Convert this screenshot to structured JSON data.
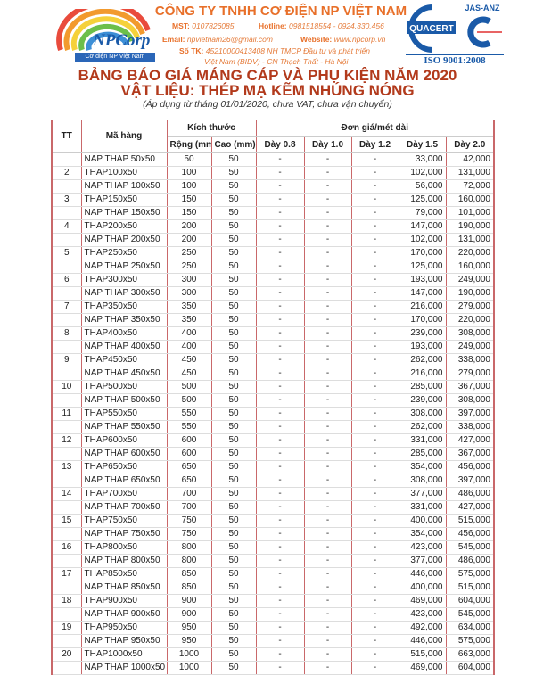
{
  "header": {
    "company": "CÔNG TY TNHH CƠ ĐIỆN NP VIỆT NAM",
    "mst_label": "MST:",
    "mst": "0107826085",
    "hotline_label": "Hotline:",
    "hotline": "0981518554 - 0924.330.456",
    "email_label": "Email:",
    "email": "npvietnam26@gmail.com",
    "website_label": "Website:",
    "website": "www.npcorp.vn",
    "account_label": "Số TK:",
    "account": "45210000413408 NH TMCP Đầu tư và phát triển",
    "account2": "Việt Nam (BIDV) - CN Thạch Thất - Hà Nội",
    "logo_text": "NPCorp",
    "logo_sub": "Cơ điện NP Việt Nam",
    "cert_text": "QUACERT",
    "cert_org": "JAS-ANZ",
    "iso": "ISO 9001:2008",
    "colors": {
      "brand_orange": "#e8702a",
      "title_red": "#b23a1c",
      "quacert_blue": "#1a5aa8"
    }
  },
  "title": {
    "line1": "BẢNG BÁO GIÁ MÁNG CÁP VÀ PHỤ KIỆN NĂM 2020",
    "line2": "VẬT LIỆU: THÉP MẠ KẼM NHÚNG NÓNG",
    "note": "(Áp dụng từ tháng 01/01/2020, chưa VAT, chưa vận chuyển)"
  },
  "table": {
    "headers": {
      "tt": "TT",
      "code": "Mã hàng",
      "size": "Kích thước",
      "price": "Đơn giá/mét dài",
      "width": "Rộng (mm)",
      "height": "Cao (mm)",
      "d08": "Dày 0.8",
      "d10": "Dày 1.0",
      "d12": "Dày 1.2",
      "d15": "Dày 1.5",
      "d20": "Dày 2.0"
    },
    "rows": [
      [
        "",
        "NAP THAP 50x50",
        "50",
        "50",
        "-",
        "-",
        "-",
        "33,000",
        "42,000"
      ],
      [
        "2",
        "THAP100x50",
        "100",
        "50",
        "-",
        "-",
        "-",
        "102,000",
        "131,000"
      ],
      [
        "",
        "NAP THAP 100x50",
        "100",
        "50",
        "-",
        "-",
        "-",
        "56,000",
        "72,000"
      ],
      [
        "3",
        "THAP150x50",
        "150",
        "50",
        "-",
        "-",
        "-",
        "125,000",
        "160,000"
      ],
      [
        "",
        "NAP THAP 150x50",
        "150",
        "50",
        "-",
        "-",
        "-",
        "79,000",
        "101,000"
      ],
      [
        "4",
        "THAP200x50",
        "200",
        "50",
        "-",
        "-",
        "-",
        "147,000",
        "190,000"
      ],
      [
        "",
        "NAP THAP 200x50",
        "200",
        "50",
        "-",
        "-",
        "-",
        "102,000",
        "131,000"
      ],
      [
        "5",
        "THAP250x50",
        "250",
        "50",
        "-",
        "-",
        "-",
        "170,000",
        "220,000"
      ],
      [
        "",
        "NAP THAP 250x50",
        "250",
        "50",
        "-",
        "-",
        "-",
        "125,000",
        "160,000"
      ],
      [
        "6",
        "THAP300x50",
        "300",
        "50",
        "-",
        "-",
        "-",
        "193,000",
        "249,000"
      ],
      [
        "",
        "NAP THAP 300x50",
        "300",
        "50",
        "-",
        "-",
        "-",
        "147,000",
        "190,000"
      ],
      [
        "7",
        "THAP350x50",
        "350",
        "50",
        "-",
        "-",
        "-",
        "216,000",
        "279,000"
      ],
      [
        "",
        "NAP THAP 350x50",
        "350",
        "50",
        "-",
        "-",
        "-",
        "170,000",
        "220,000"
      ],
      [
        "8",
        "THAP400x50",
        "400",
        "50",
        "-",
        "-",
        "-",
        "239,000",
        "308,000"
      ],
      [
        "",
        "NAP THAP 400x50",
        "400",
        "50",
        "-",
        "-",
        "-",
        "193,000",
        "249,000"
      ],
      [
        "9",
        "THAP450x50",
        "450",
        "50",
        "-",
        "-",
        "-",
        "262,000",
        "338,000"
      ],
      [
        "",
        "NAP THAP 450x50",
        "450",
        "50",
        "-",
        "-",
        "-",
        "216,000",
        "279,000"
      ],
      [
        "10",
        "THAP500x50",
        "500",
        "50",
        "-",
        "-",
        "-",
        "285,000",
        "367,000"
      ],
      [
        "",
        "NAP THAP 500x50",
        "500",
        "50",
        "-",
        "-",
        "-",
        "239,000",
        "308,000"
      ],
      [
        "11",
        "THAP550x50",
        "550",
        "50",
        "-",
        "-",
        "-",
        "308,000",
        "397,000"
      ],
      [
        "",
        "NAP THAP 550x50",
        "550",
        "50",
        "-",
        "-",
        "-",
        "262,000",
        "338,000"
      ],
      [
        "12",
        "THAP600x50",
        "600",
        "50",
        "-",
        "-",
        "-",
        "331,000",
        "427,000"
      ],
      [
        "",
        "NAP THAP 600x50",
        "600",
        "50",
        "-",
        "-",
        "-",
        "285,000",
        "367,000"
      ],
      [
        "13",
        "THAP650x50",
        "650",
        "50",
        "-",
        "-",
        "-",
        "354,000",
        "456,000"
      ],
      [
        "",
        "NAP THAP 650x50",
        "650",
        "50",
        "-",
        "-",
        "-",
        "308,000",
        "397,000"
      ],
      [
        "14",
        "THAP700x50",
        "700",
        "50",
        "-",
        "-",
        "-",
        "377,000",
        "486,000"
      ],
      [
        "",
        "NAP THAP 700x50",
        "700",
        "50",
        "-",
        "-",
        "-",
        "331,000",
        "427,000"
      ],
      [
        "15",
        "THAP750x50",
        "750",
        "50",
        "-",
        "-",
        "-",
        "400,000",
        "515,000"
      ],
      [
        "",
        "NAP THAP 750x50",
        "750",
        "50",
        "-",
        "-",
        "-",
        "354,000",
        "456,000"
      ],
      [
        "16",
        "THAP800x50",
        "800",
        "50",
        "-",
        "-",
        "-",
        "423,000",
        "545,000"
      ],
      [
        "",
        "NAP THAP 800x50",
        "800",
        "50",
        "-",
        "-",
        "-",
        "377,000",
        "486,000"
      ],
      [
        "17",
        "THAP850x50",
        "850",
        "50",
        "-",
        "-",
        "-",
        "446,000",
        "575,000"
      ],
      [
        "",
        "NAP THAP 850x50",
        "850",
        "50",
        "-",
        "-",
        "-",
        "400,000",
        "515,000"
      ],
      [
        "18",
        "THAP900x50",
        "900",
        "50",
        "-",
        "-",
        "-",
        "469,000",
        "604,000"
      ],
      [
        "",
        "NAP THAP 900x50",
        "900",
        "50",
        "-",
        "-",
        "-",
        "423,000",
        "545,000"
      ],
      [
        "19",
        "THAP950x50",
        "950",
        "50",
        "-",
        "-",
        "-",
        "492,000",
        "634,000"
      ],
      [
        "",
        "NAP THAP 950x50",
        "950",
        "50",
        "-",
        "-",
        "-",
        "446,000",
        "575,000"
      ],
      [
        "20",
        "THAP1000x50",
        "1000",
        "50",
        "-",
        "-",
        "-",
        "515,000",
        "663,000"
      ],
      [
        "",
        "NAP THAP 1000x50",
        "1000",
        "50",
        "-",
        "-",
        "-",
        "469,000",
        "604,000"
      ]
    ]
  }
}
